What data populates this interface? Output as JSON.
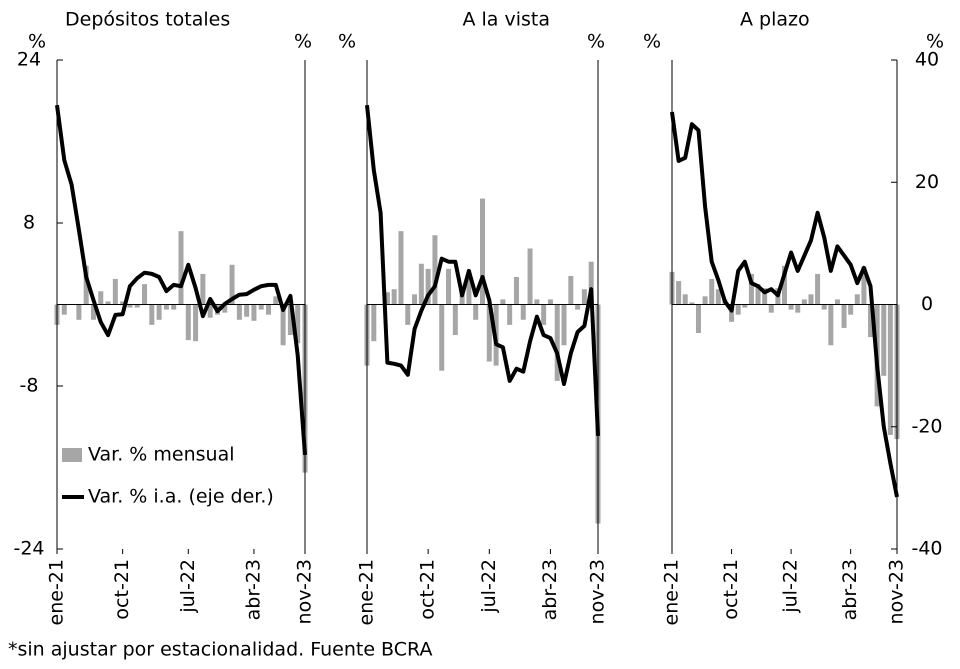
{
  "chart_data": [
    {
      "type": "bar-line",
      "title": "Depósitos totales",
      "y_unit": "%",
      "y2_unit": "%",
      "categories": [
        "ene-21",
        null,
        null,
        null,
        null,
        null,
        null,
        null,
        null,
        "oct-21",
        null,
        null,
        null,
        null,
        null,
        null,
        null,
        null,
        "jul-22",
        null,
        null,
        null,
        null,
        null,
        null,
        null,
        null,
        "abr-23",
        null,
        null,
        null,
        null,
        null,
        null,
        "nov-23"
      ],
      "ylim": [
        -24,
        24
      ],
      "yticks": [
        24,
        8,
        -8,
        -24
      ],
      "y2lim": [
        -40,
        40
      ],
      "series": [
        {
          "name": "Var. % mensual",
          "color": "#a6a6a6",
          "values": [
            -2,
            -1,
            0,
            -1.5,
            3.8,
            -1.5,
            1.3,
            0.3,
            2.5,
            0.3,
            -0.3,
            -0.3,
            2,
            -2,
            -1.5,
            -0.5,
            -0.5,
            7.2,
            -3.5,
            -3.6,
            3,
            -1.3,
            -1,
            -0.8,
            3.9,
            -1.5,
            -1.2,
            -1.6,
            -0.5,
            -1,
            0.8,
            -4,
            -3,
            -3.8,
            -16.5
          ]
        },
        {
          "name": "Var. % i.a. (eje der.)",
          "color": "#000000",
          "axis": "y2",
          "values": [
            32.6,
            23.6,
            19.6,
            12.2,
            4.5,
            0.7,
            -2.9,
            -5,
            -1.7,
            -1.6,
            3,
            4.3,
            5.2,
            5,
            4.5,
            2.2,
            3.2,
            3,
            6.5,
            2.7,
            -1.9,
            0.9,
            -1.1,
            0.1,
            0.9,
            1.6,
            1.7,
            2.4,
            3,
            3.2,
            3.2,
            -0.9,
            1.4,
            -8.3,
            -24.6
          ]
        }
      ]
    },
    {
      "type": "bar-line",
      "title": "A la vista",
      "y_unit": "%",
      "y2_unit": "%",
      "categories": [
        "ene-21",
        null,
        null,
        null,
        null,
        null,
        null,
        null,
        null,
        "oct-21",
        null,
        null,
        null,
        null,
        null,
        null,
        null,
        null,
        "jul-22",
        null,
        null,
        null,
        null,
        null,
        null,
        null,
        null,
        "abr-23",
        null,
        null,
        null,
        null,
        null,
        null,
        "nov-23"
      ],
      "ylim": [
        -24,
        24
      ],
      "y2lim": [
        -40,
        40
      ],
      "series": [
        {
          "color": "#a6a6a6",
          "values": [
            -6,
            -3.6,
            0,
            1.2,
            1.5,
            7.2,
            -2,
            1,
            4,
            3.5,
            6.8,
            -6.5,
            3.5,
            -3,
            1.5,
            3,
            -1.5,
            10.4,
            -5.6,
            -6,
            0.5,
            -2,
            2.7,
            -1.5,
            5.5,
            0.5,
            -2,
            0.5,
            -7.5,
            -4,
            2.8,
            -0.5,
            1.5,
            4.2,
            -21.5
          ]
        },
        {
          "color": "#000000",
          "axis": "y2",
          "values": [
            32.6,
            22,
            15,
            -9.5,
            -9.7,
            -10,
            -11.5,
            -4,
            -1,
            1.5,
            3,
            7.5,
            7,
            7,
            1.5,
            5.5,
            1.5,
            4.5,
            0.7,
            -6.5,
            -7,
            -12.5,
            -10.5,
            -11,
            -6,
            -2,
            -5,
            -5.5,
            -8,
            -13,
            -8,
            -4.5,
            -3.5,
            2.5,
            -21.5
          ]
        }
      ]
    },
    {
      "type": "bar-line",
      "title": "A plazo",
      "y_unit": "%",
      "y2_unit": "%",
      "categories": [
        "ene-21",
        null,
        null,
        null,
        null,
        null,
        null,
        null,
        null,
        "oct-21",
        null,
        null,
        null,
        null,
        null,
        null,
        null,
        null,
        "jul-22",
        null,
        null,
        null,
        null,
        null,
        null,
        null,
        null,
        "abr-23",
        null,
        null,
        null,
        null,
        null,
        null,
        "nov-23"
      ],
      "ylim": [
        -24,
        24
      ],
      "y2lim": [
        -40,
        40
      ],
      "y2ticks": [
        40,
        20,
        0,
        -20,
        -40
      ],
      "series": [
        {
          "color": "#a6a6a6",
          "values": [
            3.2,
            2.3,
            1,
            0.2,
            -2.8,
            0.8,
            2.5,
            1.5,
            0.5,
            -1.7,
            -1,
            -0.3,
            3,
            2,
            1.6,
            -0.8,
            1.6,
            3.8,
            -0.5,
            -0.8,
            0.5,
            1,
            3,
            -0.5,
            -4,
            0.5,
            -2.3,
            -1,
            1,
            3.7,
            -3.2,
            -10,
            -7,
            -12.8,
            -13.2
          ]
        },
        {
          "color": "#000000",
          "axis": "y2",
          "values": [
            31.5,
            23.5,
            24,
            29.5,
            28.5,
            16,
            7,
            4,
            0.5,
            -1,
            5.5,
            7,
            3.5,
            3,
            2,
            2.5,
            1.5,
            5,
            8.5,
            5.5,
            8,
            10.5,
            15,
            11,
            5.5,
            9.5,
            8,
            6.5,
            3.5,
            6,
            3,
            -10,
            -20,
            -26,
            -31.5
          ]
        }
      ]
    }
  ],
  "note": "*sin ajustar por estacionalidad. Fuente BCRA"
}
